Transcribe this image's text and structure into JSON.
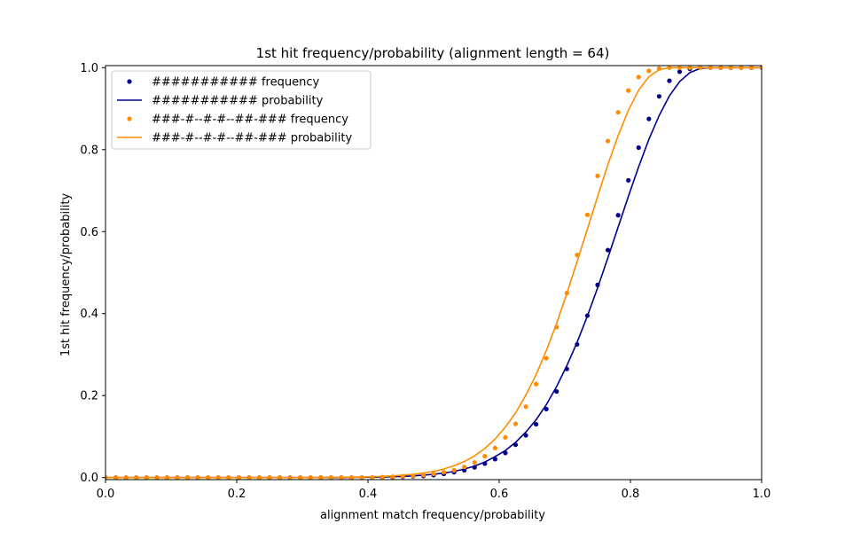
{
  "chart_data": {
    "type": "scatter",
    "title": "1st hit frequency/probability (alignment length = 64)",
    "xlabel": "alignment match frequency/probability",
    "ylabel": "1st hit frequency/probability",
    "xlim": [
      0.0,
      1.0
    ],
    "ylim": [
      -0.005,
      1.005
    ],
    "xticks": [
      0.0,
      0.2,
      0.4,
      0.6,
      0.8,
      1.0
    ],
    "xtick_labels": [
      "0.0",
      "0.2",
      "0.4",
      "0.6",
      "0.8",
      "1.0"
    ],
    "yticks": [
      0.0,
      0.2,
      0.4,
      0.6,
      0.8,
      1.0
    ],
    "ytick_labels": [
      "0.0",
      "0.2",
      "0.4",
      "0.6",
      "0.8",
      "1.0"
    ],
    "grid": false,
    "legend_position": "top-left",
    "x": [
      0.0,
      0.015625,
      0.03125,
      0.046875,
      0.0625,
      0.078125,
      0.09375,
      0.109375,
      0.125,
      0.140625,
      0.15625,
      0.171875,
      0.1875,
      0.203125,
      0.21875,
      0.234375,
      0.25,
      0.265625,
      0.28125,
      0.296875,
      0.3125,
      0.328125,
      0.34375,
      0.359375,
      0.375,
      0.390625,
      0.40625,
      0.421875,
      0.4375,
      0.453125,
      0.46875,
      0.484375,
      0.5,
      0.515625,
      0.53125,
      0.546875,
      0.5625,
      0.578125,
      0.59375,
      0.609375,
      0.625,
      0.640625,
      0.65625,
      0.671875,
      0.6875,
      0.703125,
      0.71875,
      0.734375,
      0.75,
      0.765625,
      0.78125,
      0.796875,
      0.8125,
      0.828125,
      0.84375,
      0.859375,
      0.875,
      0.890625,
      0.90625,
      0.921875,
      0.9375,
      0.953125,
      0.96875,
      0.984375,
      1.0
    ],
    "series": [
      {
        "name": "########### frequency",
        "kind": "points",
        "color": "#00008b",
        "values": [
          0,
          0,
          0,
          0,
          0,
          0,
          0,
          0,
          0,
          0,
          0,
          0,
          0,
          0,
          0,
          0,
          0,
          0,
          0,
          0,
          0,
          0,
          0,
          0,
          0,
          0,
          0,
          0,
          0.001,
          0.002,
          0.003,
          0.004,
          0.006,
          0.009,
          0.013,
          0.018,
          0.025,
          0.034,
          0.045,
          0.06,
          0.08,
          0.103,
          0.13,
          0.167,
          0.21,
          0.265,
          0.325,
          0.395,
          0.47,
          0.555,
          0.64,
          0.725,
          0.805,
          0.875,
          0.93,
          0.968,
          0.99,
          0.997,
          1.0,
          1.0,
          1.0,
          1.0,
          1.0,
          1.0,
          1.0
        ]
      },
      {
        "name": "########### probability",
        "kind": "line",
        "color": "#00008b",
        "values": [
          0,
          0,
          0,
          0,
          0,
          0,
          0,
          0,
          0,
          0,
          0,
          0,
          0,
          0,
          0,
          0,
          0,
          0,
          0,
          0,
          0,
          0,
          0,
          0,
          0.0005,
          0.0007,
          0.001,
          0.0014,
          0.002,
          0.003,
          0.004,
          0.006,
          0.008,
          0.011,
          0.015,
          0.021,
          0.028,
          0.038,
          0.051,
          0.066,
          0.086,
          0.111,
          0.141,
          0.178,
          0.222,
          0.273,
          0.33,
          0.394,
          0.463,
          0.536,
          0.611,
          0.686,
          0.758,
          0.825,
          0.883,
          0.931,
          0.966,
          0.988,
          0.998,
          1.0,
          1.0,
          1.0,
          1.0,
          1.0,
          1.0
        ]
      },
      {
        "name": "###-#--#-#--##-### frequency",
        "kind": "points",
        "color": "#ff8c00",
        "values": [
          0,
          0,
          0,
          0,
          0,
          0,
          0,
          0,
          0,
          0,
          0,
          0,
          0,
          0,
          0,
          0,
          0,
          0,
          0,
          0,
          0,
          0,
          0,
          0,
          0,
          0,
          0,
          0.001,
          0.002,
          0.003,
          0.004,
          0.006,
          0.009,
          0.013,
          0.018,
          0.026,
          0.037,
          0.052,
          0.072,
          0.098,
          0.131,
          0.173,
          0.228,
          0.291,
          0.367,
          0.45,
          0.543,
          0.641,
          0.736,
          0.821,
          0.891,
          0.944,
          0.977,
          0.992,
          0.998,
          1.0,
          1.0,
          1.0,
          1.0,
          1.0,
          1.0,
          1.0,
          1.0,
          1.0,
          1.0
        ]
      },
      {
        "name": "###-#--#-#--##-### probability",
        "kind": "line",
        "color": "#ff8c00",
        "values": [
          0,
          0,
          0,
          0,
          0,
          0,
          0,
          0,
          0,
          0,
          0,
          0,
          0,
          0,
          0,
          0,
          0,
          0,
          0,
          0,
          0,
          0,
          0.0005,
          0.0007,
          0.001,
          0.0014,
          0.002,
          0.003,
          0.004,
          0.006,
          0.008,
          0.011,
          0.015,
          0.021,
          0.029,
          0.039,
          0.053,
          0.071,
          0.094,
          0.123,
          0.158,
          0.201,
          0.251,
          0.31,
          0.376,
          0.449,
          0.527,
          0.606,
          0.686,
          0.763,
          0.834,
          0.896,
          0.945,
          0.978,
          0.995,
          1.0,
          1.0,
          1.0,
          1.0,
          1.0,
          1.0,
          1.0,
          1.0,
          1.0,
          1.0
        ]
      }
    ]
  }
}
